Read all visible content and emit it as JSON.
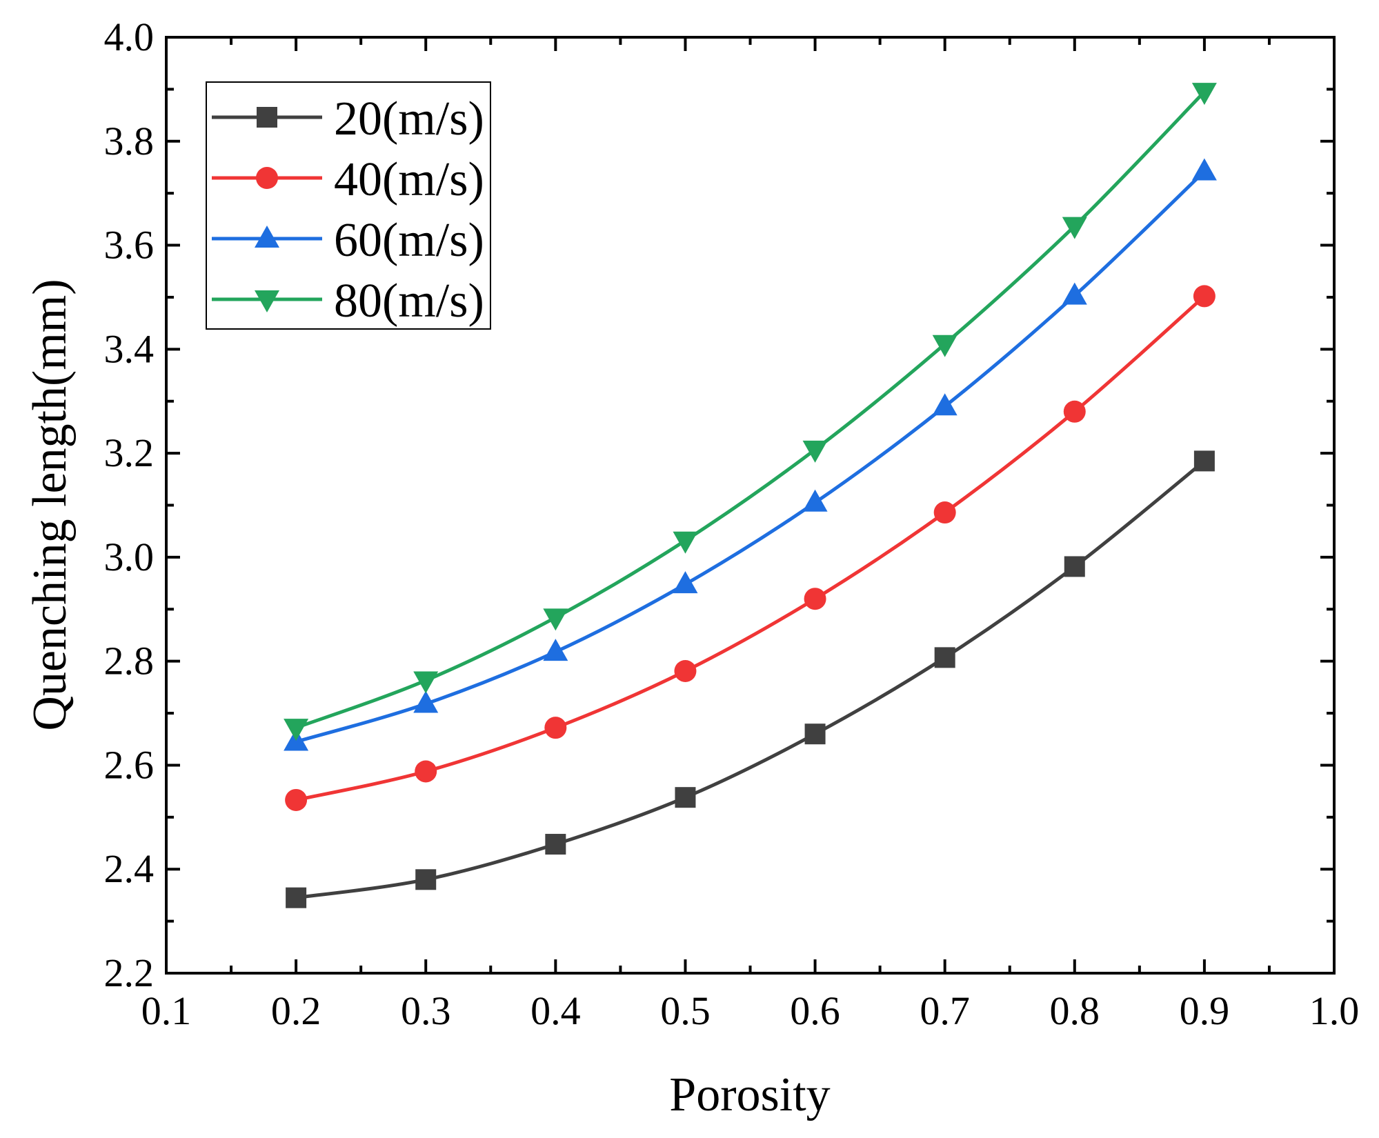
{
  "chart_data": {
    "type": "line",
    "title": "",
    "xlabel": "Porosity",
    "ylabel": "Quenching length(mm)",
    "xlim": [
      0.1,
      1.0
    ],
    "ylim": [
      2.2,
      4.0
    ],
    "x_ticks": [
      "0.1",
      "0.2",
      "0.3",
      "0.4",
      "0.5",
      "0.6",
      "0.7",
      "0.8",
      "0.9",
      "1.0"
    ],
    "y_ticks": [
      "2.2",
      "2.4",
      "2.6",
      "2.8",
      "3.0",
      "3.2",
      "3.4",
      "3.6",
      "3.8",
      "4.0"
    ],
    "x": [
      0.2,
      0.3,
      0.4,
      0.5,
      0.6,
      0.7,
      0.8,
      0.9
    ],
    "legend_position": "top-left",
    "series": [
      {
        "name": "20(m/s)",
        "marker": "square",
        "color": "#404040",
        "values": [
          2.345,
          2.38,
          2.448,
          2.538,
          2.66,
          2.807,
          2.982,
          3.185
        ]
      },
      {
        "name": "40(m/s)",
        "marker": "circle",
        "color": "#f03535",
        "values": [
          2.533,
          2.588,
          2.672,
          2.781,
          2.92,
          3.086,
          3.28,
          3.502
        ]
      },
      {
        "name": "60(m/s)",
        "marker": "triangle-up",
        "color": "#1e6ee0",
        "values": [
          2.645,
          2.718,
          2.818,
          2.948,
          3.105,
          3.29,
          3.503,
          3.742
        ]
      },
      {
        "name": "80(m/s)",
        "marker": "triangle-down",
        "color": "#23a55c",
        "values": [
          2.672,
          2.763,
          2.884,
          3.032,
          3.207,
          3.41,
          3.637,
          3.895
        ]
      }
    ]
  }
}
